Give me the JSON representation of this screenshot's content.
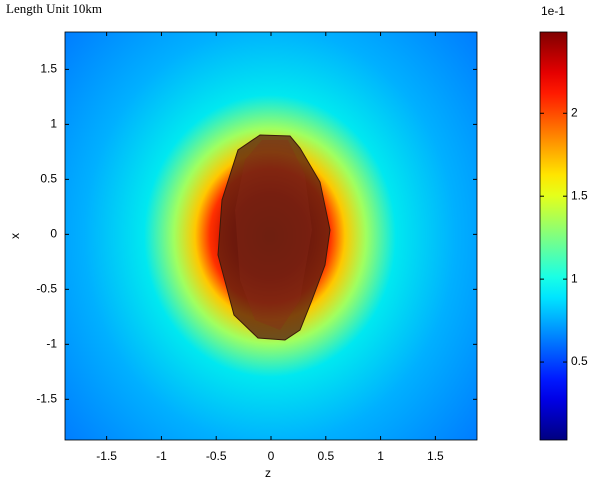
{
  "chart_data": {
    "type": "heatmap",
    "title": "Length Unit 10km",
    "xlabel": "z",
    "ylabel": "x",
    "xlim": [
      -1.88,
      1.88
    ],
    "ylim": [
      -1.87,
      1.84
    ],
    "xticks": [
      -1.5,
      -1,
      -0.5,
      0,
      0.5,
      1,
      1.5
    ],
    "yticks": [
      -1.5,
      -1,
      -0.5,
      0,
      0.5,
      1,
      1.5
    ],
    "colormap": "jet",
    "clim": [
      0.03,
      2.49
    ],
    "cticks": [
      0.5,
      1,
      1.5,
      2
    ],
    "colorbar_scale_label": "1e-1"
  }
}
